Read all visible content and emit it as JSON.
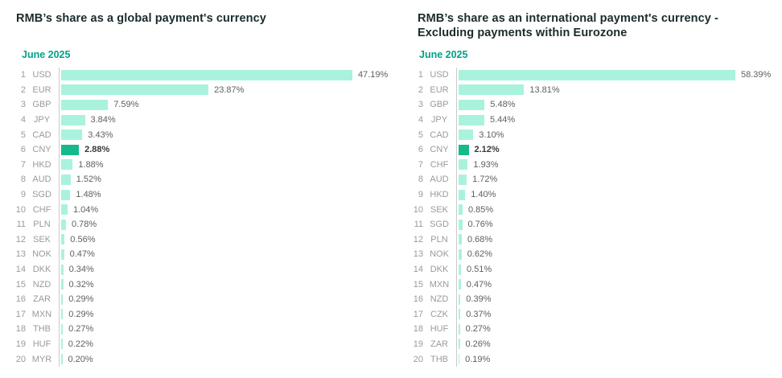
{
  "colors": {
    "bar": "#a9f2de",
    "highlight_bar": "#14b98c",
    "subtitle": "#00a287",
    "title": "#1b2b2b",
    "axis_line": "#cbcbcb",
    "rank_code_text": "#9a9a9a",
    "value_text": "#5f5f5f"
  },
  "chart_data": [
    {
      "type": "bar",
      "orientation": "horizontal",
      "title": "RMB’s share as a global payment's currency",
      "subtitle": "June 2025",
      "unit": "%",
      "value_axis_visible": false,
      "grid": false,
      "legend": false,
      "highlight_category": "CNY",
      "bar_color": "#a9f2de",
      "highlight_color": "#14b98c",
      "ranks": [
        "1",
        "2",
        "3",
        "4",
        "5",
        "6",
        "7",
        "8",
        "9",
        "10",
        "11",
        "12",
        "13",
        "14",
        "15",
        "16",
        "17",
        "18",
        "19",
        "20"
      ],
      "categories": [
        "USD",
        "EUR",
        "GBP",
        "JPY",
        "CAD",
        "CNY",
        "HKD",
        "AUD",
        "SGD",
        "CHF",
        "PLN",
        "SEK",
        "NOK",
        "DKK",
        "NZD",
        "ZAR",
        "MXN",
        "THB",
        "HUF",
        "MYR"
      ],
      "values": [
        47.19,
        23.87,
        7.59,
        3.84,
        3.43,
        2.88,
        1.88,
        1.52,
        1.48,
        1.04,
        0.78,
        0.56,
        0.47,
        0.34,
        0.32,
        0.29,
        0.29,
        0.27,
        0.22,
        0.2
      ],
      "labels": [
        "47.19%",
        "23.87%",
        "7.59%",
        "3.84%",
        "3.43%",
        "2.88%",
        "1.88%",
        "1.52%",
        "1.48%",
        "1.04%",
        "0.78%",
        "0.56%",
        "0.47%",
        "0.34%",
        "0.32%",
        "0.29%",
        "0.29%",
        "0.27%",
        "0.22%",
        "0.20%"
      ]
    },
    {
      "type": "bar",
      "orientation": "horizontal",
      "title": "RMB’s share as an international payment's currency - Excluding payments within Eurozone",
      "subtitle": "June 2025",
      "unit": "%",
      "value_axis_visible": false,
      "grid": false,
      "legend": false,
      "highlight_category": "CNY",
      "bar_color": "#a9f2de",
      "highlight_color": "#14b98c",
      "ranks": [
        "1",
        "2",
        "3",
        "4",
        "5",
        "6",
        "7",
        "8",
        "9",
        "10",
        "11",
        "12",
        "13",
        "14",
        "15",
        "16",
        "17",
        "18",
        "19",
        "20"
      ],
      "categories": [
        "USD",
        "EUR",
        "GBP",
        "JPY",
        "CAD",
        "CNY",
        "CHF",
        "AUD",
        "HKD",
        "SEK",
        "SGD",
        "PLN",
        "NOK",
        "DKK",
        "MXN",
        "NZD",
        "CZK",
        "HUF",
        "ZAR",
        "THB"
      ],
      "values": [
        58.39,
        13.81,
        5.48,
        5.44,
        3.1,
        2.12,
        1.93,
        1.72,
        1.4,
        0.85,
        0.76,
        0.68,
        0.62,
        0.51,
        0.47,
        0.39,
        0.37,
        0.27,
        0.26,
        0.19
      ],
      "labels": [
        "58.39%",
        "13.81%",
        "5.48%",
        "5.44%",
        "3.10%",
        "2.12%",
        "1.93%",
        "1.72%",
        "1.40%",
        "0.85%",
        "0.76%",
        "0.68%",
        "0.62%",
        "0.51%",
        "0.47%",
        "0.39%",
        "0.37%",
        "0.27%",
        "0.26%",
        "0.19%"
      ]
    }
  ]
}
